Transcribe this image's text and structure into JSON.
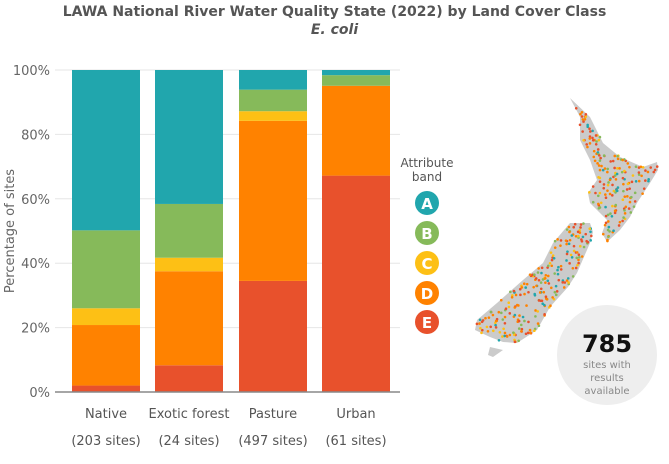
{
  "chart_data": {
    "type": "bar",
    "stacked": true,
    "title": "LAWA National River Water Quality State (2022) by Land Cover Class",
    "subtitle": "E. coli",
    "ylabel": "Percentage of sites",
    "ylim": [
      0,
      100
    ],
    "yticks": [
      "0%",
      "20%",
      "40%",
      "60%",
      "80%",
      "100%"
    ],
    "categories": [
      "Native",
      "Exotic forest",
      "Pasture",
      "Urban"
    ],
    "category_sublabels": [
      "(203 sites)",
      "(24 sites)",
      "(497 sites)",
      "(61 sites)"
    ],
    "series": [
      {
        "name": "E",
        "color": "#e8512c",
        "values": [
          2.0,
          8.3,
          34.5,
          67.2
        ]
      },
      {
        "name": "D",
        "color": "#ff8200",
        "values": [
          18.8,
          29.2,
          49.7,
          27.9
        ]
      },
      {
        "name": "C",
        "color": "#fdc015",
        "values": [
          5.2,
          4.2,
          3.0,
          0.0
        ]
      },
      {
        "name": "B",
        "color": "#86ba5a",
        "values": [
          24.2,
          16.7,
          6.7,
          3.3
        ]
      },
      {
        "name": "A",
        "color": "#21a6ad",
        "values": [
          49.8,
          41.6,
          6.1,
          1.6
        ]
      }
    ],
    "legend": {
      "title_line1": "Attribute",
      "title_line2": "band",
      "placement": "right",
      "items": [
        "A",
        "B",
        "C",
        "D",
        "E"
      ]
    },
    "grid": true
  },
  "summary": {
    "count": "785",
    "line1": "sites with",
    "line2": "results",
    "line3": "available"
  }
}
